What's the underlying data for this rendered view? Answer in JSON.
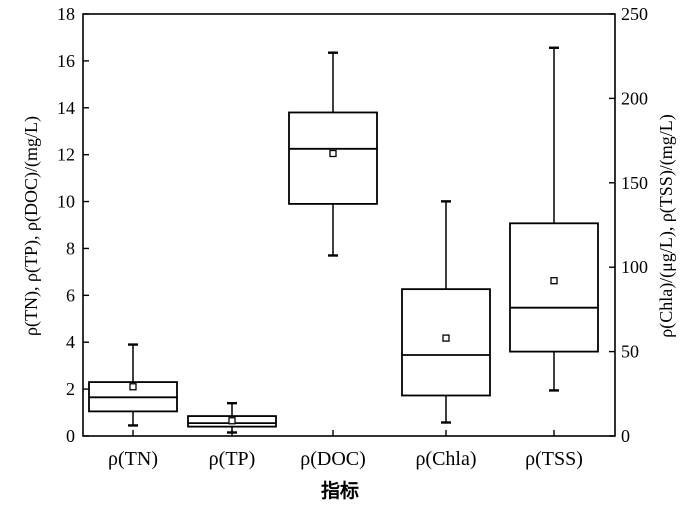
{
  "chart_data": {
    "type": "box",
    "xlabel": "指标",
    "ylabel_left": "ρ(TN), ρ(TP), ρ(DOC)/(mg/L)",
    "ylabel_right": "ρ(Chla)/(μg/L), ρ(TSS)/(mg/L)",
    "ylim_left": [
      0,
      18
    ],
    "yticks_left": [
      0,
      2,
      4,
      6,
      8,
      10,
      12,
      14,
      16,
      18
    ],
    "ylim_right": [
      0,
      250
    ],
    "yticks_right": [
      0,
      50,
      100,
      150,
      200,
      250
    ],
    "categories": [
      {
        "label": "ρ(TN)",
        "axis": "left",
        "min": 0.45,
        "q1": 1.05,
        "median": 1.65,
        "q3": 2.3,
        "max": 3.9,
        "mean": 2.1
      },
      {
        "label": "ρ(TP)",
        "axis": "left",
        "min": 0.15,
        "q1": 0.4,
        "median": 0.55,
        "q3": 0.85,
        "max": 1.4,
        "mean": 0.65
      },
      {
        "label": "ρ(DOC)",
        "axis": "left",
        "min": 7.7,
        "q1": 9.9,
        "median": 12.25,
        "q3": 13.8,
        "max": 16.35,
        "mean": 12.05
      },
      {
        "label": "ρ(Chla)",
        "axis": "right",
        "min": 8,
        "q1": 24,
        "median": 48,
        "q3": 87,
        "max": 139,
        "mean": 58
      },
      {
        "label": "ρ(TSS)",
        "axis": "right",
        "min": 27,
        "q1": 50,
        "median": 76,
        "q3": 126,
        "max": 230,
        "mean": 92
      }
    ]
  }
}
